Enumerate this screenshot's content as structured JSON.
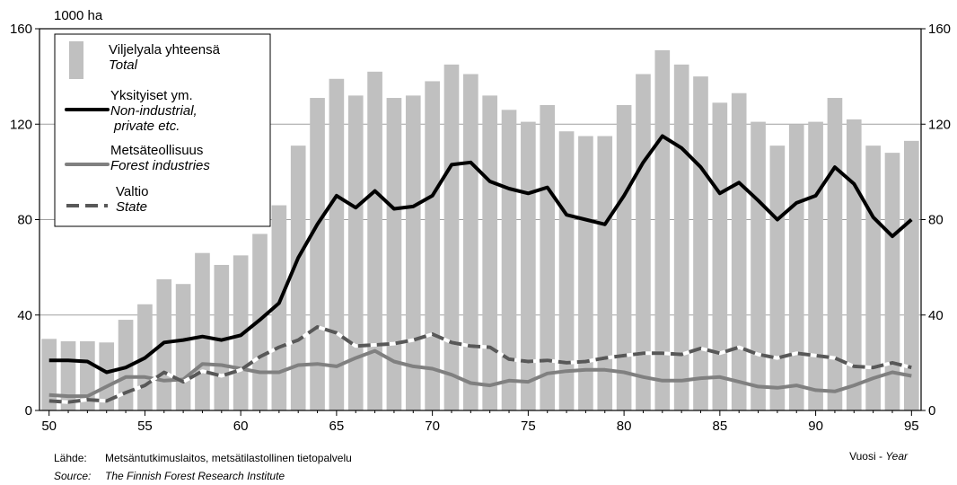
{
  "chart_data": {
    "type": "bar",
    "unit_label": "1000 ha",
    "xlabel_fi": "Vuosi - ",
    "xlabel_en": "Year",
    "ylim": [
      0,
      160
    ],
    "yticks": [
      0,
      40,
      80,
      120,
      160
    ],
    "xticks": [
      50,
      55,
      60,
      65,
      70,
      75,
      80,
      85,
      90,
      95
    ],
    "x": [
      50,
      51,
      52,
      53,
      54,
      55,
      56,
      57,
      58,
      59,
      60,
      61,
      62,
      63,
      64,
      65,
      66,
      67,
      68,
      69,
      70,
      71,
      72,
      73,
      74,
      75,
      76,
      77,
      78,
      79,
      80,
      81,
      82,
      83,
      84,
      85,
      86,
      87,
      88,
      89,
      90,
      91,
      92,
      93,
      94,
      95
    ],
    "gridlines": true,
    "legend_position": "top-left",
    "series": [
      {
        "name": "Viljelyala yhteensä",
        "name_en": "Total",
        "kind": "bar",
        "color": "#c0c0c0",
        "values": [
          30,
          29,
          29,
          28.5,
          38,
          44.5,
          55,
          53,
          66,
          61,
          65,
          74,
          86,
          111,
          131,
          139,
          132,
          142,
          131,
          132,
          138,
          145,
          141,
          132,
          126,
          121,
          128,
          117,
          115,
          115,
          128,
          141,
          151,
          145,
          140,
          129,
          133,
          121,
          111,
          120,
          121,
          131,
          122,
          111,
          108,
          113
        ]
      },
      {
        "name": "Yksityiset ym.",
        "name_en": "Non-industrial,",
        "name_en2": "private etc.",
        "kind": "line",
        "color": "#000000",
        "values": [
          21,
          21,
          20.5,
          16,
          18,
          22,
          28.5,
          29.5,
          31,
          29.5,
          31.5,
          38,
          45,
          64,
          78,
          90,
          85,
          92,
          84.5,
          85.5,
          90,
          103,
          104,
          96,
          93,
          91,
          93.5,
          82,
          80,
          78,
          90,
          104,
          115,
          110,
          102,
          91,
          95.5,
          88,
          80,
          87,
          90,
          102,
          95,
          81,
          73,
          80
        ]
      },
      {
        "name": "Metsäteollisuus",
        "name_en": "Forest industries",
        "kind": "line",
        "color": "#808080",
        "values": [
          6.5,
          6,
          6,
          10,
          14,
          14,
          12.5,
          13,
          19.5,
          19,
          17.5,
          16,
          16,
          19,
          19.5,
          18.5,
          22,
          25,
          20.5,
          18.5,
          17.5,
          15,
          11.5,
          10.5,
          12.5,
          12,
          15.5,
          16.5,
          17,
          17,
          16,
          14,
          12.5,
          12.5,
          13.5,
          14,
          12,
          10,
          9.5,
          10.5,
          8.5,
          8,
          10.5,
          13.5,
          16,
          14.5
        ]
      },
      {
        "name": "Valtio",
        "name_en": "State",
        "kind": "dashed-line",
        "color": "#585858",
        "values": [
          4,
          3.5,
          4.5,
          4,
          7.5,
          10.5,
          16,
          12,
          16.5,
          14.5,
          17,
          22.5,
          26.5,
          29.5,
          35,
          32.5,
          27,
          27.5,
          28,
          29.5,
          32,
          28.5,
          27,
          26.5,
          21.5,
          20.5,
          21,
          20,
          20.5,
          22,
          23,
          24,
          24,
          23.5,
          26,
          24,
          26.5,
          23.5,
          22,
          24,
          23,
          22,
          18.5,
          18,
          20,
          18
        ]
      }
    ]
  },
  "footer": {
    "source_label_fi": "Lähde:",
    "source_text_fi": "Metsäntutkimuslaitos, metsätilastollinen tietopalvelu",
    "source_label_en": "Source:",
    "source_text_en": "The Finnish Forest Research Institute"
  }
}
